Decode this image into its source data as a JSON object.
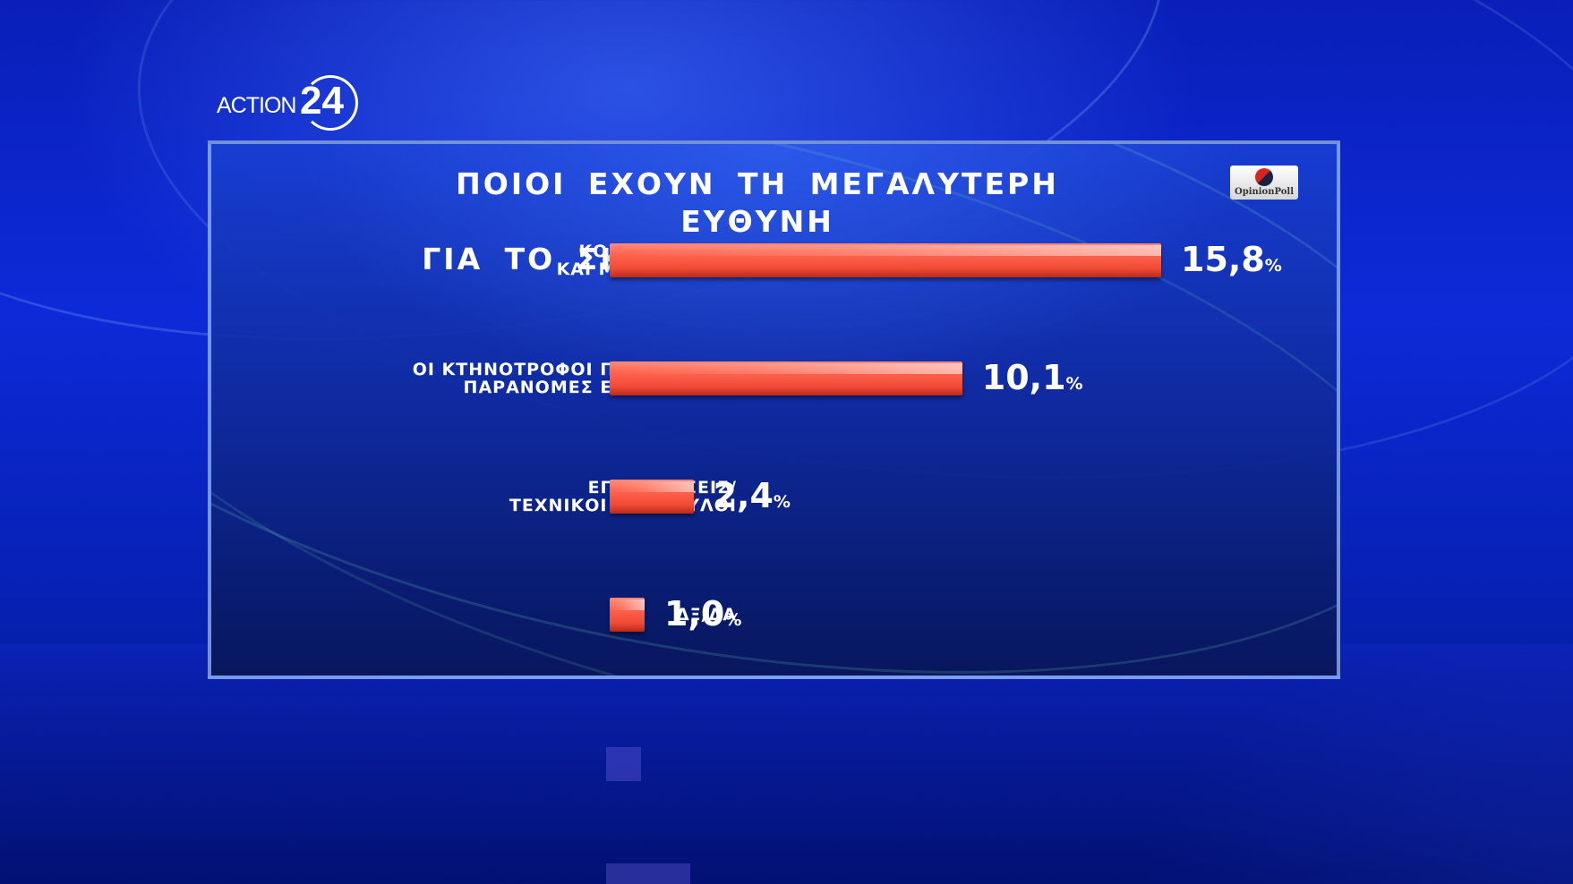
{
  "brand": {
    "channel_word": "ACTION",
    "channel_number": "24",
    "pollster": "OpinionPoll"
  },
  "colors": {
    "bar": "#f04a35",
    "background": "#0d2ad8",
    "text": "#ffffff"
  },
  "chart_data": {
    "type": "bar",
    "orientation": "horizontal",
    "title": "ΠΟΙΟΙ ΕΧΟΥΝ ΤΗ ΜΕΓΑΛΥΤΕΡΗ ΕΥΘΥΝΗ ΓΙΑ ΤΟ ΣΚΑΝΔΑΛΟ ΤΟΥ ΟΠΕΚΕΠΕ;",
    "title_lines": [
      "ΠΟΙΟΙ ΕΧΟΥΝ ΤΗ ΜΕΓΑΛΥΤΕΡΗ ΕΥΘΥΝΗ",
      "ΓΙΑ ΤΟ ΣΚΑΝΔΑΛΟ ΤΟΥ ΟΠΕΚΕΠΕ;"
    ],
    "unit": "%",
    "categories": [
      {
        "lines": [
          "ΚΟΜΜΑΤΑΡΧΕΣ",
          "ΚΑΙ ΜΕΣΑΖΟΝΤΕΣ"
        ],
        "value": 15.8,
        "value_label": "15,8"
      },
      {
        "lines": [
          "ΟΙ ΚΤΗΝΟΤΡΟΦΟΙ ΠΟΥ ΗΘΕΛΑΝ",
          "ΠΑΡΑΝΟΜΕΣ ΕΠΙΔΟΤΗΣΕΙΣ"
        ],
        "value": 10.1,
        "value_label": "10,1"
      },
      {
        "lines": [
          "ΕΠΙΧΕΙΡΗΣΕΙΣ/",
          "ΤΕΧΝΙΚΟΙ ΣΥΜΒΟΥΛΟΙ"
        ],
        "value": 2.4,
        "value_label": "2,4"
      },
      {
        "lines": [
          "ΔΞ/ΔΑ"
        ],
        "value": 1.0,
        "value_label": "1,0"
      }
    ],
    "xlim": [
      0,
      15.8
    ],
    "grid": false,
    "legend": "none"
  }
}
